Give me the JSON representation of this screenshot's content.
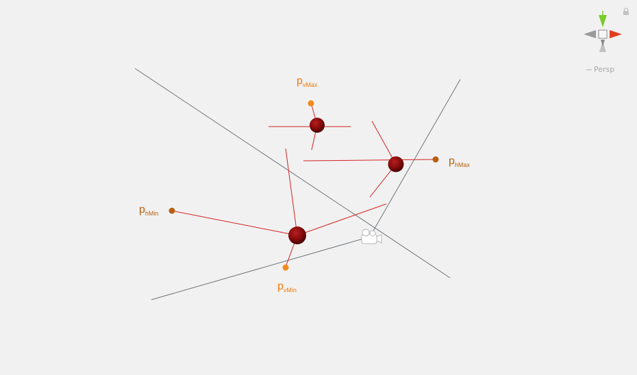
{
  "scene": {
    "labels": {
      "v_max": {
        "base": "p",
        "sub": "vMax",
        "color": "#f07a10"
      },
      "h_max": {
        "base": "p",
        "sub": "hMax",
        "color": "#b8600e"
      },
      "h_min": {
        "base": "p",
        "sub": "hMin",
        "color": "#b8600e"
      },
      "v_min": {
        "base": "p",
        "sub": "vMin",
        "color": "#f07a10"
      }
    },
    "colors": {
      "frustum_line": "#6d7378",
      "red_line": "#d42020",
      "sphere": "#8a0c0c",
      "point_orange": "#f08a1a",
      "point_brown": "#b85e10"
    },
    "icons": [
      "camera-icon",
      "sphere-icon",
      "point-icon"
    ]
  },
  "gizmo": {
    "projection_label": "Persp",
    "axis_y_color": "#7acc2a",
    "axis_x_color": "#e04020",
    "axis_z_color": "#9a9a9a",
    "icons": [
      "scene-gizmo-icon",
      "lock-icon"
    ]
  }
}
